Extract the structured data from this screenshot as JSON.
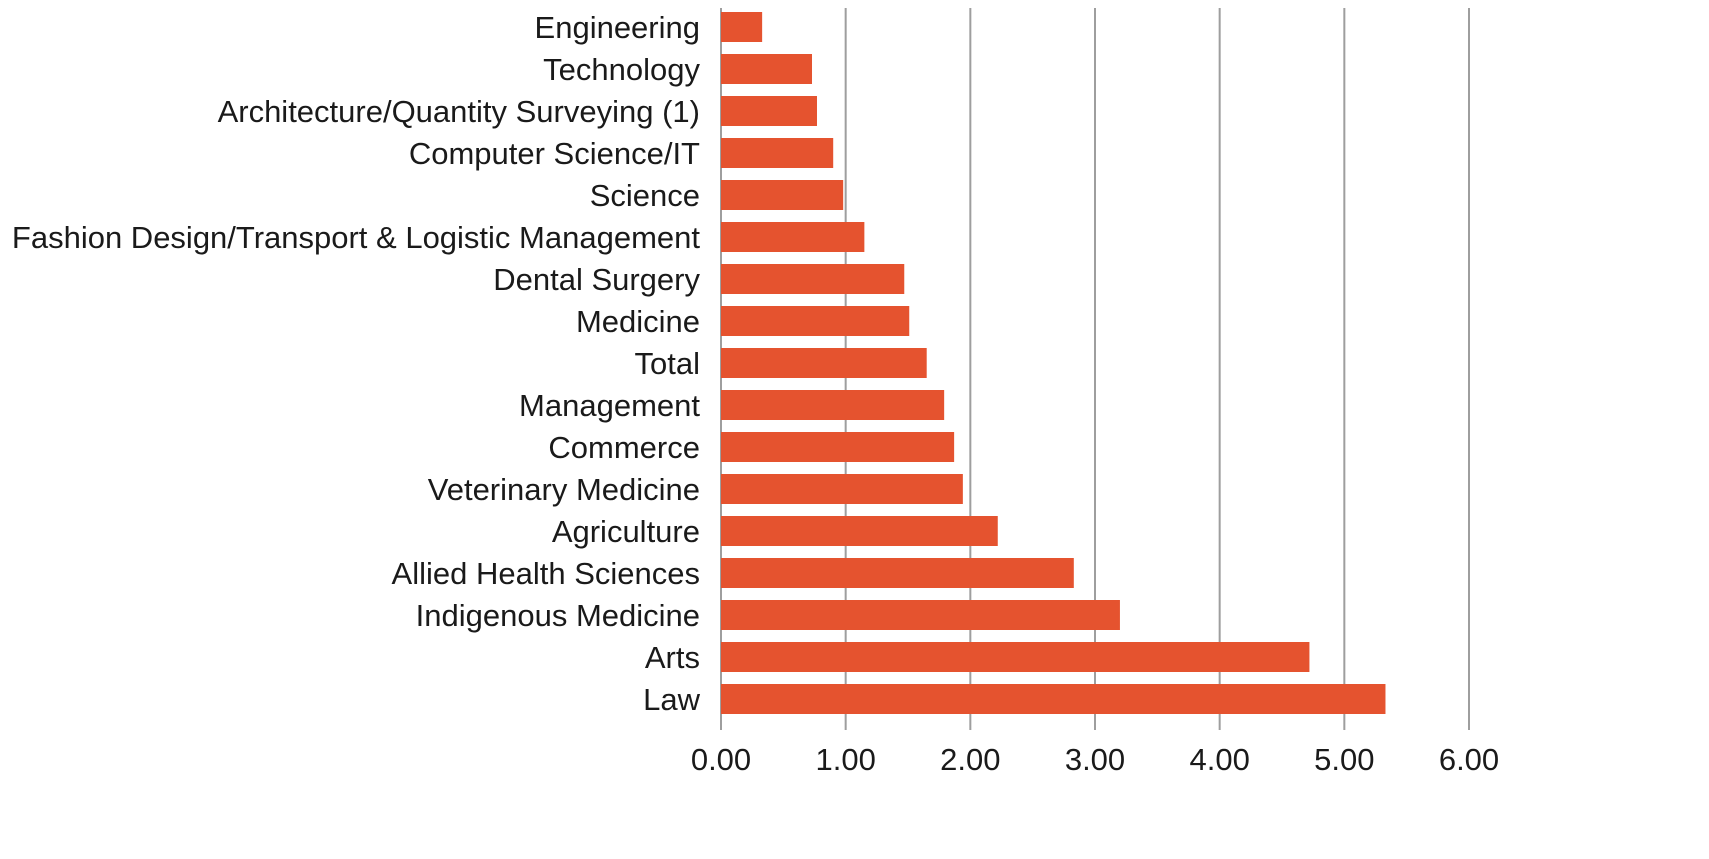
{
  "chart_data": {
    "type": "bar",
    "orientation": "horizontal",
    "title": "",
    "xlabel": "",
    "ylabel": "",
    "xlim": [
      0,
      6
    ],
    "x_ticks": [
      0,
      1,
      2,
      3,
      4,
      5,
      6
    ],
    "x_tick_labels": [
      "0.00",
      "1.00",
      "2.00",
      "3.00",
      "4.00",
      "5.00",
      "6.00"
    ],
    "grid": "vertical",
    "legend": "none",
    "bar_color": "#e5532f",
    "grid_color": "#9e9e9e",
    "categories": [
      "Engineering",
      "Technology",
      "Architecture/Quantity Surveying (1)",
      "Computer Science/IT",
      "Science",
      "Fashion Design/Transport  & Logistic Management",
      "Dental Surgery",
      "Medicine",
      "Total",
      "Management",
      "Commerce",
      "Veterinary Medicine",
      "Agriculture",
      "Allied Health Sciences",
      "Indigenous Medicine",
      "Arts",
      "Law"
    ],
    "values": [
      0.33,
      0.73,
      0.77,
      0.9,
      0.98,
      1.15,
      1.47,
      1.51,
      1.65,
      1.79,
      1.87,
      1.94,
      2.22,
      2.83,
      3.2,
      4.72,
      5.33
    ]
  }
}
